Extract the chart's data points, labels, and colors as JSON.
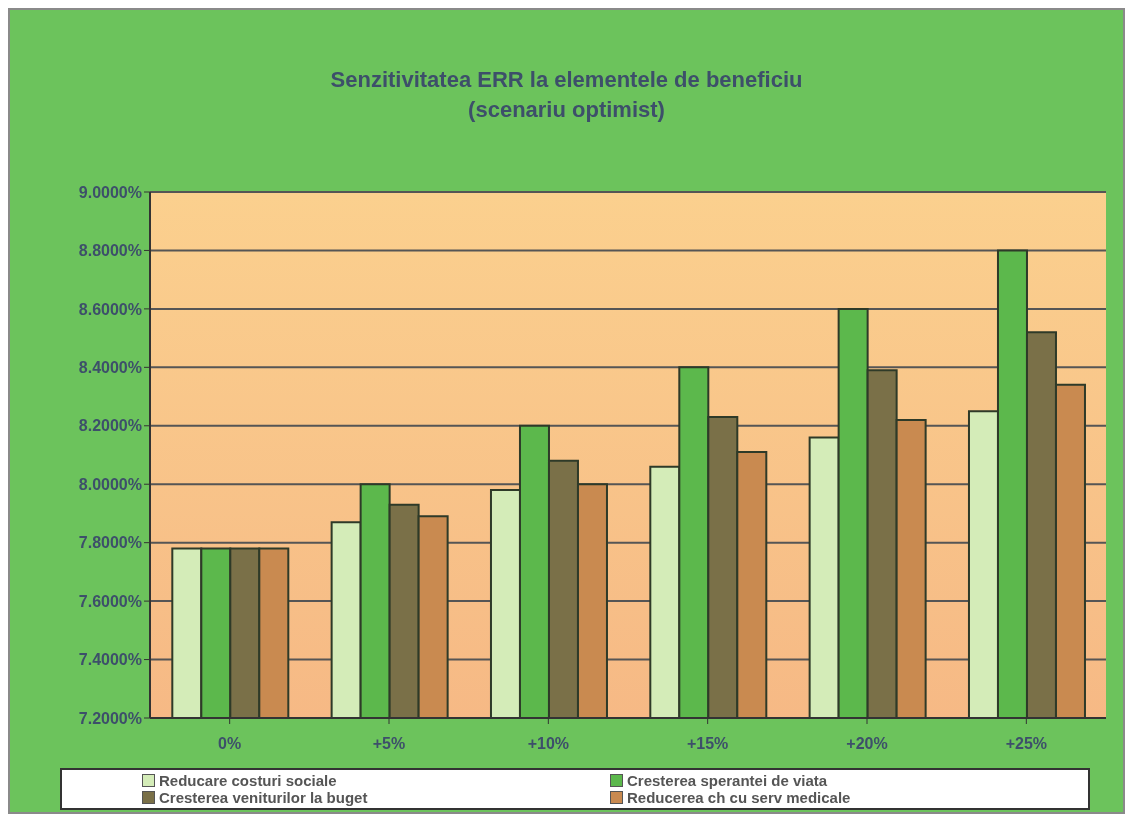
{
  "chart_data": {
    "type": "bar",
    "title": "Senzitivitatea ERR la elementele de beneficiu",
    "subtitle": "(scenariu optimist)",
    "categories": [
      "0%",
      "+5%",
      "+10%",
      "+15%",
      "+20%",
      "+25%"
    ],
    "series": [
      {
        "name": "Reducare costuri sociale",
        "color": "#d4ecb8",
        "values": [
          7.78,
          7.87,
          7.98,
          8.06,
          8.16,
          8.25
        ]
      },
      {
        "name": "Cresterea sperantei de viata",
        "color": "#5cb84c",
        "values": [
          7.78,
          8.0,
          8.2,
          8.4,
          8.6,
          8.8
        ]
      },
      {
        "name": "Cresterea veniturilor la buget",
        "color": "#7a7048",
        "values": [
          7.78,
          7.93,
          8.08,
          8.23,
          8.39,
          8.52
        ]
      },
      {
        "name": "Reducerea ch cu serv medicale",
        "color": "#c98a50",
        "values": [
          7.78,
          7.89,
          8.0,
          8.11,
          8.22,
          8.34
        ]
      }
    ],
    "ylim": [
      7.2,
      9.0
    ],
    "yticks": [
      {
        "value": 7.2,
        "label": "7.2000%"
      },
      {
        "value": 7.4,
        "label": "7.4000%"
      },
      {
        "value": 7.6,
        "label": "7.6000%"
      },
      {
        "value": 7.8,
        "label": "7.8000%"
      },
      {
        "value": 8.0,
        "label": "8.0000%"
      },
      {
        "value": 8.2,
        "label": "8.2000%"
      },
      {
        "value": 8.4,
        "label": "8.4000%"
      },
      {
        "value": 8.6,
        "label": "8.6000%"
      },
      {
        "value": 8.8,
        "label": "8.8000%"
      },
      {
        "value": 9.0,
        "label": "9.0000%"
      }
    ],
    "grid": "y",
    "legend": "bottom"
  }
}
